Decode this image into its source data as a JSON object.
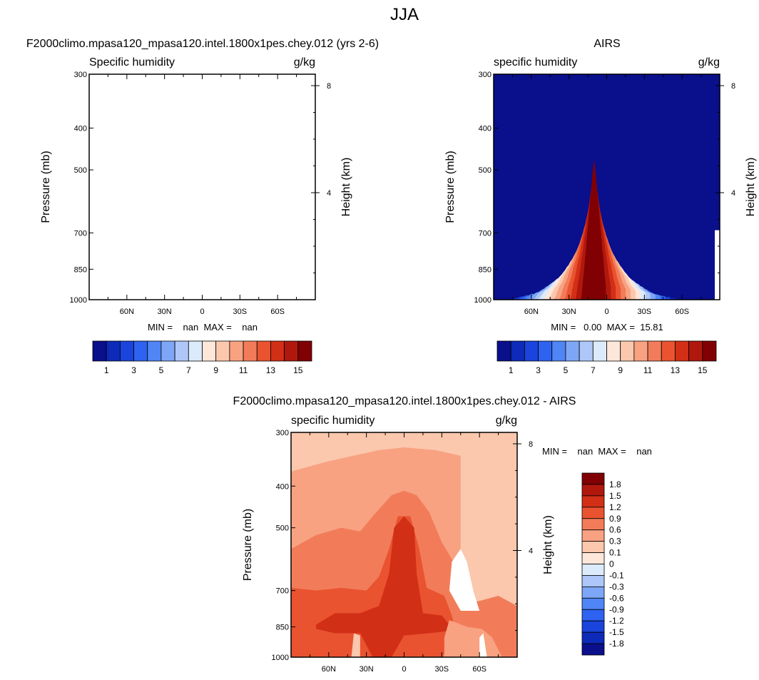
{
  "page_title": "JJA",
  "chart_data": [
    {
      "type": "contour",
      "title": "F2000climo.mpasa120_mpasa120.intel.1800x1pes.chey.012 (yrs 2-6)",
      "left_label": "Specific humidity",
      "right_label": "g/kg",
      "ylabel": "Pressure (mb)",
      "y2label": "Height (km)",
      "x_ticks": [
        "60N",
        "30N",
        "0",
        "30S",
        "60S"
      ],
      "x_tick_values": [
        60,
        30,
        0,
        -30,
        -60
      ],
      "xlim": [
        90,
        -90
      ],
      "y_ticks": [
        300,
        400,
        500,
        700,
        850,
        1000
      ],
      "ylim": [
        1000,
        300
      ],
      "height_ticks_km": [
        4,
        8
      ],
      "stats": "MIN =    nan  MAX =    nan",
      "min": "nan",
      "max": "nan",
      "field_present": false,
      "colorbar_labels": [
        "1",
        "3",
        "5",
        "7",
        "9",
        "11",
        "13",
        "15"
      ],
      "colorbar_colors": [
        "#0a0f8c",
        "#0d2ab9",
        "#1a44dc",
        "#2e62f0",
        "#4f85f5",
        "#7ea6f6",
        "#aec7f8",
        "#dcebfb",
        "#fde6da",
        "#fbc7ad",
        "#f8a282",
        "#f27c59",
        "#e95330",
        "#d22f17",
        "#b0180e",
        "#800003"
      ]
    },
    {
      "type": "contour",
      "title": "AIRS",
      "left_label": "specific humidity",
      "right_label": "g/kg",
      "ylabel": "Pressure (mb)",
      "y2label": "Height (km)",
      "x_ticks": [
        "60N",
        "30N",
        "0",
        "30S",
        "60S"
      ],
      "x_tick_values": [
        60,
        30,
        0,
        -30,
        -60
      ],
      "xlim": [
        90,
        -90
      ],
      "y_ticks": [
        300,
        400,
        500,
        700,
        850,
        1000
      ],
      "ylim": [
        1000,
        300
      ],
      "height_ticks_km": [
        4,
        8
      ],
      "stats": "MIN =   0.00  MAX =  15.81",
      "min": 0.0,
      "max": 15.81,
      "field_present": true,
      "field_peak_lat": 10,
      "colorbar_labels": [
        "1",
        "3",
        "5",
        "7",
        "9",
        "11",
        "13",
        "15"
      ],
      "colorbar_colors": [
        "#0a0f8c",
        "#0d2ab9",
        "#1a44dc",
        "#2e62f0",
        "#4f85f5",
        "#7ea6f6",
        "#aec7f8",
        "#dcebfb",
        "#fde6da",
        "#fbc7ad",
        "#f8a282",
        "#f27c59",
        "#e95330",
        "#d22f17",
        "#b0180e",
        "#800003"
      ]
    },
    {
      "type": "contour",
      "title": "F2000climo.mpasa120_mpasa120.intel.1800x1pes.chey.012 - AIRS",
      "left_label": "specific humidity",
      "right_label": "g/kg",
      "ylabel": "Pressure (mb)",
      "y2label": "Height (km)",
      "x_ticks": [
        "60N",
        "30N",
        "0",
        "30S",
        "60S"
      ],
      "x_tick_values": [
        60,
        30,
        0,
        -30,
        -60
      ],
      "xlim": [
        90,
        -90
      ],
      "y_ticks": [
        300,
        400,
        500,
        700,
        850,
        1000
      ],
      "ylim": [
        1000,
        300
      ],
      "height_ticks_km": [
        4,
        8
      ],
      "stats": "MIN =    nan  MAX =    nan",
      "min": "nan",
      "max": "nan",
      "field_present": true,
      "colorbar_labels": [
        "1.8",
        "1.5",
        "1.2",
        "0.9",
        "0.6",
        "0.3",
        "0.1",
        "0",
        "-0.1",
        "-0.3",
        "-0.6",
        "-0.9",
        "-1.2",
        "-1.5",
        "-1.8"
      ],
      "colorbar_colors": [
        "#800003",
        "#b0180e",
        "#d22f17",
        "#e95330",
        "#f27c59",
        "#f8a282",
        "#fbc7ad",
        "#fde6da",
        "#dcebfb",
        "#aec7f8",
        "#7ea6f6",
        "#4f85f5",
        "#2e62f0",
        "#1a44dc",
        "#0d2ab9",
        "#0a0f8c"
      ]
    }
  ]
}
